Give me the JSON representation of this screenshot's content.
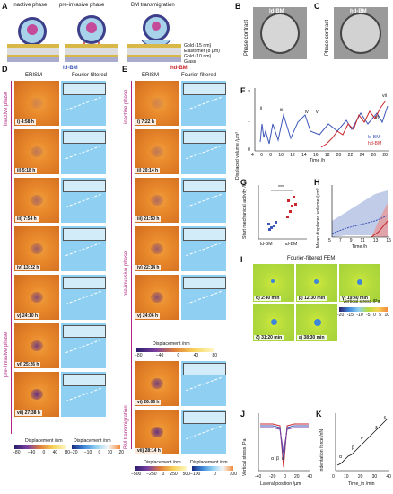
{
  "panels": {
    "A": {
      "letter": "A",
      "phases": [
        "inactive phase",
        "pre-invasive phase",
        "BM transmigration"
      ],
      "layers": [
        "Gold (15 nm)",
        "Elastomer (8 µm)",
        "Gold (10 nm)",
        "Glass"
      ]
    },
    "B": {
      "letter": "B",
      "title": "ld-BM",
      "side": "Phase contrast"
    },
    "C": {
      "letter": "C",
      "title": "hd-BM",
      "side": "Phase contrast"
    },
    "D": {
      "letter": "D",
      "title": "ld-BM",
      "col1": "ERISM",
      "col2": "Fourier-filtered",
      "frames": [
        "i) 4:58 h",
        "ii) 5:18 h",
        "iii) 7:54 h",
        "iv) 13:22 h",
        "v) 24:10 h",
        "vi) 25:26 h",
        "vii) 27:38 h"
      ],
      "phase1": "inactive phase",
      "phase2": "pre-invasive phase",
      "cb1_label": "Displacement /nm",
      "cb1_ticks": [
        "−80",
        "−40",
        "0",
        "40",
        "80"
      ],
      "cb2_label": "Displacement /nm",
      "cb2_ticks": [
        "−20",
        "−10",
        "0",
        "10",
        "20"
      ]
    },
    "E": {
      "letter": "E",
      "title": "hd-BM",
      "col1": "ERISM",
      "col2": "Fourier-filtered",
      "frames": [
        "i) 7:22 h",
        "ii) 20:14 h",
        "iii) 21:50 h",
        "iv) 22:34 h",
        "v) 24:06 h",
        "vi) 26:06 h",
        "vii) 28:14 h"
      ],
      "phase1": "inactive phase",
      "phase2": "pre-invasive phase",
      "phase3": "BM transmigration",
      "cb_mid_label": "Displacement /nm",
      "cb_mid_ticks": [
        "−80",
        "−40",
        "0",
        "40",
        "80"
      ],
      "cb1_label": "Displacement /nm",
      "cb1_ticks": [
        "−500",
        "−250",
        "0",
        "250",
        "500"
      ],
      "cb2_label": "Displacement /nm",
      "cb2_ticks": [
        "−100",
        "0",
        "100"
      ]
    },
    "F": {
      "letter": "F",
      "ylabel": "Displaced volume /µm³",
      "xlabel": "Time /h",
      "legend": [
        "ld-BM",
        "hd-BM"
      ],
      "xticks": [
        "4",
        "6",
        "8",
        "10",
        "12",
        "14",
        "16",
        "18",
        "20",
        "22",
        "24",
        "26",
        "28"
      ],
      "yticks": [
        "0",
        "1",
        "2"
      ],
      "annot": [
        "ii",
        "iii",
        "iv",
        "v",
        "vi",
        "vii"
      ]
    },
    "G": {
      "letter": "G",
      "ylabel": "Start mechanical activity /h",
      "xcats": [
        "ld-BM",
        "hd-BM"
      ],
      "sig": "***",
      "yticks": [
        "5",
        "10",
        "15",
        "20"
      ]
    },
    "H": {
      "letter": "H",
      "ylabel": "Mean displaced volume /µm³",
      "xlabel": "Time /h",
      "xticks": [
        "5",
        "7",
        "9",
        "11",
        "13",
        "15"
      ],
      "yticks": [
        "0",
        "1",
        "2",
        "3"
      ]
    },
    "I": {
      "letter": "I",
      "title": "Fourier-filtered FEM",
      "frames": [
        "α) 2:40 min",
        "β) 12:30 min",
        "γ) 19:40 min",
        "δ) 31:20 min",
        "ε) 38:30 min"
      ],
      "cb_label": "Vertical stress /Pa",
      "cb_ticks": [
        "-20",
        "-15",
        "-10",
        "-5",
        "0",
        "5",
        "10"
      ]
    },
    "J": {
      "letter": "J",
      "ylabel": "Vertical stress /Pa",
      "xlabel": "Lateral position /µm",
      "xticks": [
        "-40",
        "-20",
        "0",
        "20",
        "40"
      ],
      "yticks": [
        "0",
        "-5",
        "-10",
        "-15",
        "-20"
      ],
      "greek": [
        "α",
        "β",
        "ε"
      ]
    },
    "K": {
      "letter": "K",
      "ylabel": "Indentation force /nN",
      "xlabel": "Time_in /min",
      "xticks": [
        "0",
        "10",
        "20",
        "30",
        "40"
      ],
      "yticks": [
        "0",
        "1",
        "2",
        "3",
        "4",
        "5"
      ],
      "greek": [
        "α",
        "β",
        "γ",
        "δ",
        "ε"
      ]
    }
  },
  "colors": {
    "ld": "#3d56b8",
    "hd": "#c8262c",
    "phase": "#b1257e",
    "erism": "#e48a2e",
    "fourier": "#8fd0f2",
    "fem": "#b8dc3c"
  }
}
